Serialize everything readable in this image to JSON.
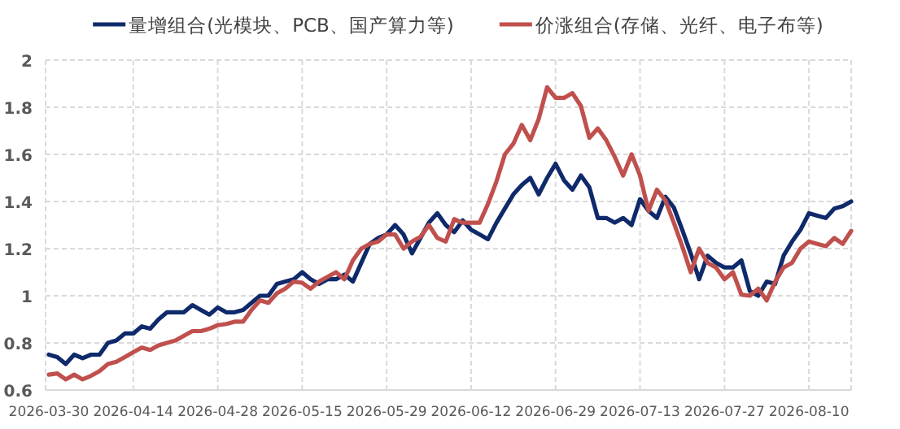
{
  "chart_data": {
    "type": "line",
    "categories": [
      "2026-03-30",
      null,
      null,
      null,
      null,
      null,
      null,
      null,
      null,
      null,
      "2026-04-14",
      null,
      null,
      null,
      null,
      null,
      null,
      null,
      null,
      null,
      "2026-04-28",
      null,
      null,
      null,
      null,
      null,
      null,
      null,
      null,
      null,
      "2026-05-15",
      null,
      null,
      null,
      null,
      null,
      null,
      null,
      null,
      null,
      "2026-05-29",
      null,
      null,
      null,
      null,
      null,
      null,
      null,
      null,
      null,
      "2026-06-12",
      null,
      null,
      null,
      null,
      null,
      null,
      null,
      null,
      null,
      "2026-06-29",
      null,
      null,
      null,
      null,
      null,
      null,
      null,
      null,
      null,
      "2026-07-13",
      null,
      null,
      null,
      null,
      null,
      null,
      null,
      null,
      null,
      "2026-07-27",
      null,
      null,
      null,
      null,
      null,
      null,
      null,
      null,
      null,
      "2026-08-10",
      null,
      null,
      null,
      null,
      null
    ],
    "series": [
      {
        "name": "量增组合(光模块、PCB、国产算力等)",
        "color": "#0f2a6b",
        "values": [
          0.75,
          0.74,
          0.71,
          0.75,
          0.735,
          0.75,
          0.75,
          0.8,
          0.81,
          0.84,
          0.84,
          0.87,
          0.86,
          0.9,
          0.93,
          0.93,
          0.93,
          0.96,
          0.94,
          0.92,
          0.95,
          0.93,
          0.93,
          0.94,
          0.97,
          1.0,
          1.0,
          1.05,
          1.06,
          1.07,
          1.1,
          1.07,
          1.05,
          1.07,
          1.07,
          1.09,
          1.06,
          1.14,
          1.22,
          1.245,
          1.26,
          1.3,
          1.26,
          1.18,
          1.245,
          1.31,
          1.35,
          1.3,
          1.27,
          1.32,
          1.28,
          1.26,
          1.24,
          1.31,
          1.37,
          1.43,
          1.47,
          1.5,
          1.43,
          1.5,
          1.56,
          1.49,
          1.45,
          1.51,
          1.46,
          1.33,
          1.33,
          1.31,
          1.33,
          1.3,
          1.41,
          1.36,
          1.33,
          1.42,
          1.375,
          1.28,
          1.18,
          1.07,
          1.17,
          1.14,
          1.12,
          1.12,
          1.15,
          1.02,
          1.0,
          1.06,
          1.05,
          1.17,
          1.23,
          1.28,
          1.35,
          1.34,
          1.33,
          1.37,
          1.38,
          1.4
        ]
      },
      {
        "name": "价涨组合(存储、光纤、电子布等)",
        "color": "#c0504d",
        "values": [
          0.665,
          0.67,
          0.645,
          0.665,
          0.645,
          0.66,
          0.68,
          0.71,
          0.72,
          0.74,
          0.76,
          0.78,
          0.77,
          0.79,
          0.8,
          0.81,
          0.83,
          0.85,
          0.85,
          0.86,
          0.875,
          0.88,
          0.89,
          0.89,
          0.94,
          0.98,
          0.97,
          1.01,
          1.03,
          1.06,
          1.055,
          1.03,
          1.06,
          1.08,
          1.1,
          1.07,
          1.15,
          1.2,
          1.22,
          1.23,
          1.26,
          1.26,
          1.2,
          1.23,
          1.25,
          1.3,
          1.245,
          1.23,
          1.325,
          1.31,
          1.31,
          1.31,
          1.39,
          1.485,
          1.6,
          1.645,
          1.725,
          1.66,
          1.75,
          1.885,
          1.84,
          1.84,
          1.86,
          1.805,
          1.67,
          1.71,
          1.66,
          1.59,
          1.51,
          1.6,
          1.51,
          1.36,
          1.45,
          1.405,
          1.31,
          1.21,
          1.1,
          1.2,
          1.14,
          1.12,
          1.07,
          1.1,
          1.005,
          1.0,
          1.03,
          0.98,
          1.06,
          1.12,
          1.14,
          1.2,
          1.23,
          1.22,
          1.21,
          1.245,
          1.22,
          1.275
        ]
      }
    ],
    "ylim": [
      0.6,
      2
    ],
    "yticks": [
      0.6,
      0.8,
      1,
      1.2,
      1.4,
      1.6,
      1.8,
      2
    ],
    "grid": true,
    "legend": "top",
    "marker": "none",
    "line_style": "solid"
  }
}
